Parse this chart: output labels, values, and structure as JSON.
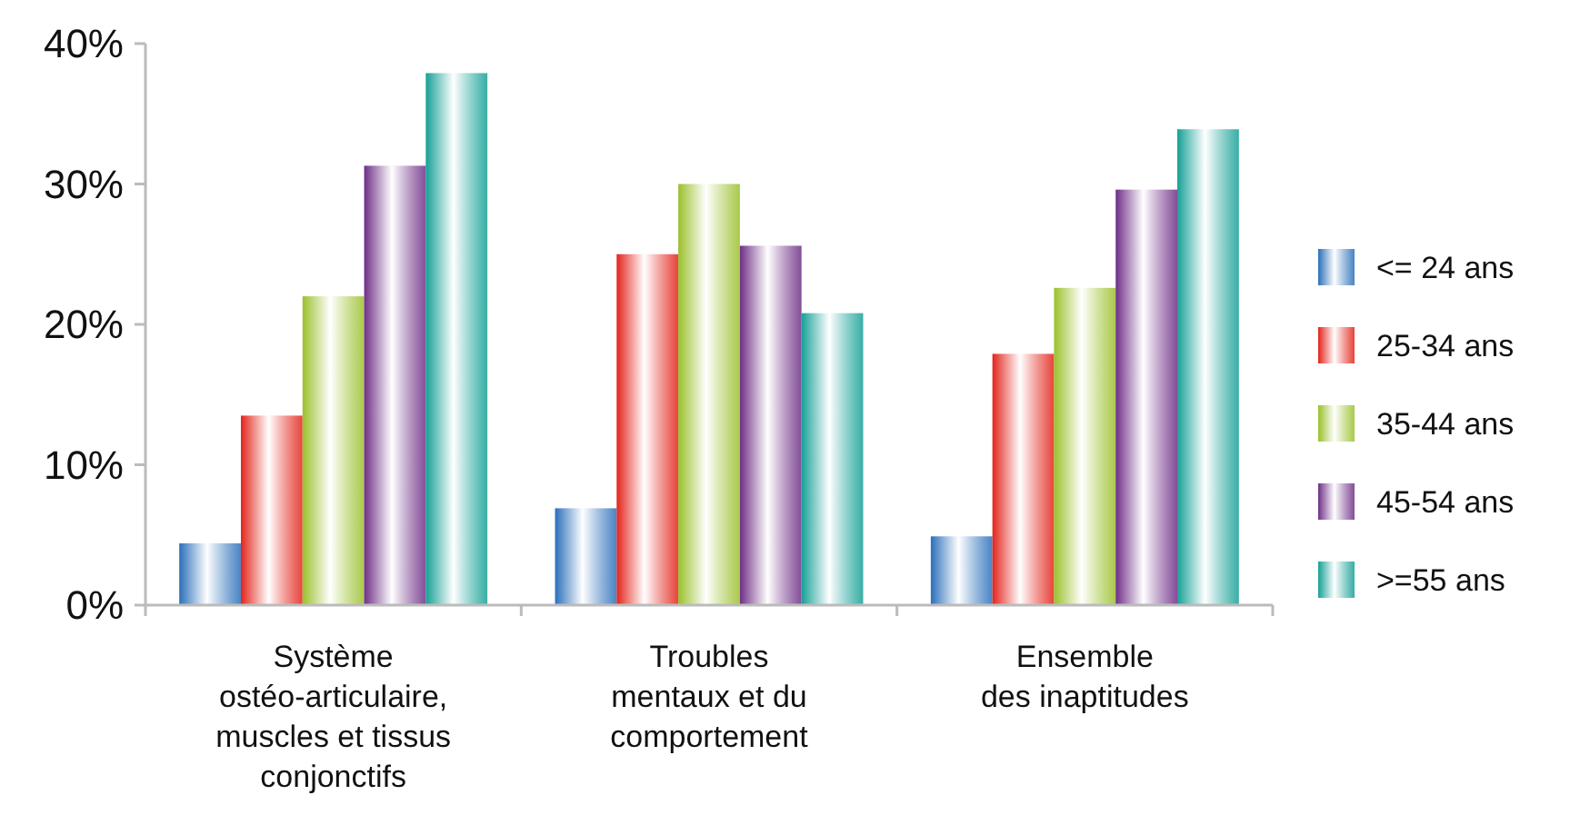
{
  "chart_data": {
    "type": "bar",
    "categories": [
      "Système\nostéo-articulaire,\nmuscles et tissus\nconjonctifs",
      "Troubles\nmentaux et du\ncomportement",
      "Ensemble\ndes inaptitudes"
    ],
    "series": [
      {
        "name": "<= 24 ans",
        "color": "#2a6fba",
        "values": [
          4.4,
          6.9,
          4.9
        ]
      },
      {
        "name": "25-34 ans",
        "color": "#e3241b",
        "values": [
          13.5,
          25.0,
          17.9
        ]
      },
      {
        "name": "35-44 ans",
        "color": "#9bc02c",
        "values": [
          22.0,
          30.0,
          22.6
        ]
      },
      {
        "name": "45-54 ans",
        "color": "#6e2f86",
        "values": [
          31.3,
          25.6,
          29.6
        ]
      },
      {
        "name": ">=55 ans",
        "color": "#16a096",
        "values": [
          37.9,
          20.8,
          33.9
        ]
      }
    ],
    "ylim": [
      0,
      40
    ],
    "yticks": [
      {
        "value": 0,
        "label": "0%"
      },
      {
        "value": 10,
        "label": "10%"
      },
      {
        "value": 20,
        "label": "20%"
      },
      {
        "value": 30,
        "label": "30%"
      },
      {
        "value": 40,
        "label": "40%"
      }
    ],
    "grid": false,
    "legend": "right"
  }
}
